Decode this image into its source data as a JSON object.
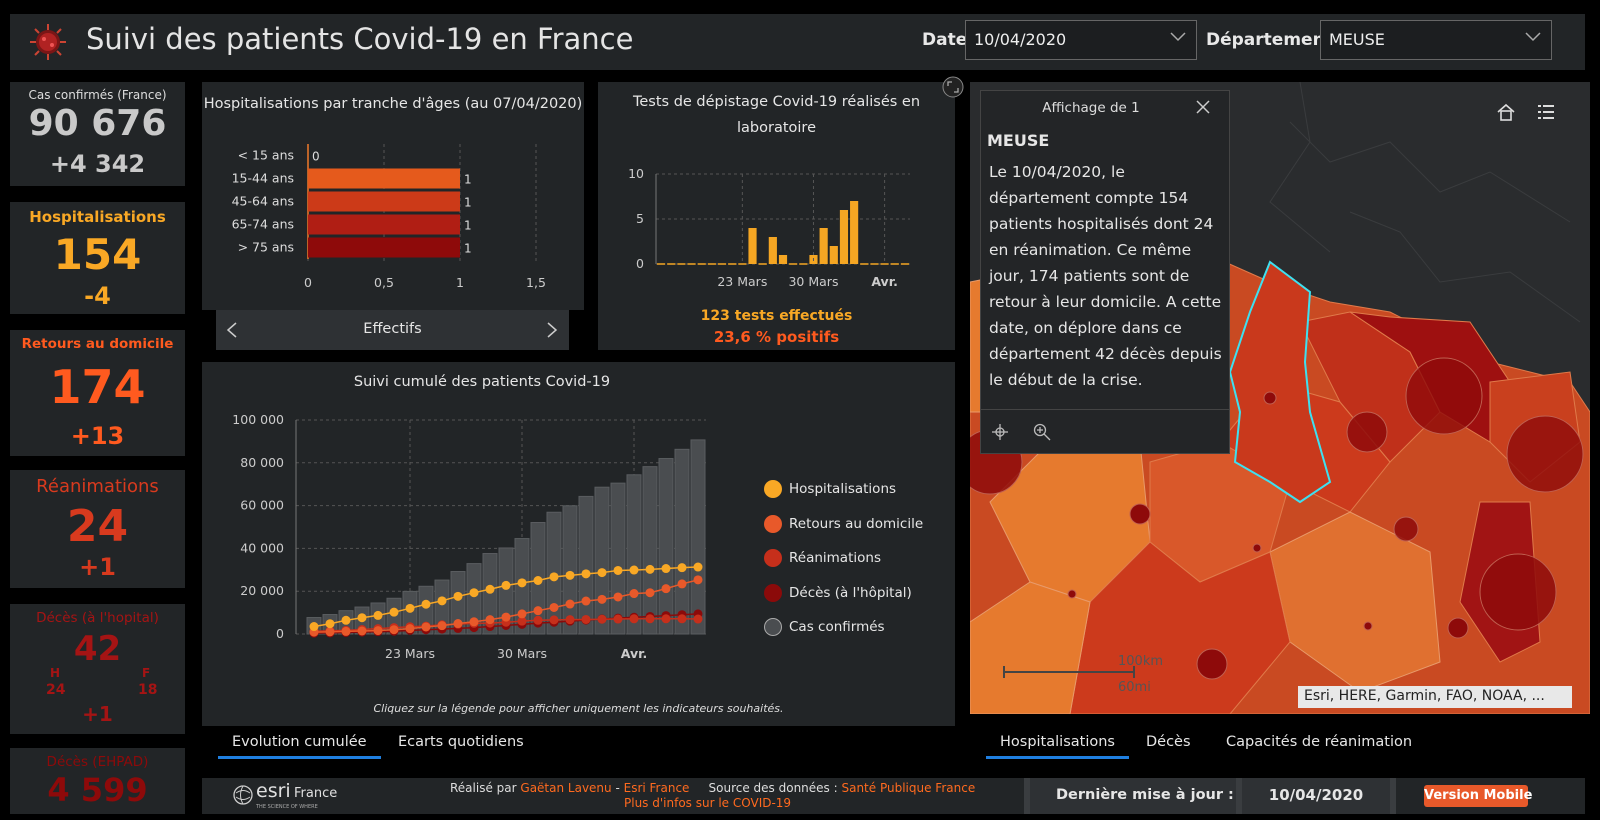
{
  "header": {
    "title": "Suivi des patients Covid-19 en France",
    "date_label": "Date:",
    "date_value": "10/04/2020",
    "dept_label": "Département:",
    "dept_value": "MEUSE"
  },
  "kpis": {
    "cas": {
      "label": "Cas confirmés (France)",
      "value": "90 676",
      "delta": "+4 342"
    },
    "hosp": {
      "label": "Hospitalisations",
      "value": "154",
      "delta": "-4"
    },
    "retours": {
      "label": "Retours au domicile",
      "value": "174",
      "delta": "+13"
    },
    "rea": {
      "label": "Réanimations",
      "value": "24",
      "delta": "+1"
    },
    "deces": {
      "label": "Décès (à l'hopital)",
      "value": "42",
      "h_label": "H",
      "f_label": "F",
      "h_value": "24",
      "f_value": "18",
      "delta": "+1"
    },
    "ehpad": {
      "label": "Décès (EHPAD)",
      "value": "4 599"
    }
  },
  "age_chart": {
    "title": "Hospitalisations par tranche d'âges (au 07/04/2020)",
    "nav_label": "Effectifs"
  },
  "tests_chart": {
    "title_line1": "Tests de dépistage Covid-19 réalisés en",
    "title_line2": "laboratoire",
    "summary_tests": "123 tests effectués",
    "summary_pos": "23,6 % positifs"
  },
  "cumul_chart": {
    "title": "Suivi cumulé des patients Covid-19",
    "legend": [
      "Hospitalisations",
      "Retours au domicile",
      "Réanimations",
      "Décès (à l'hôpital)",
      "Cas confirmés"
    ],
    "hint": "Cliquez sur la légende pour afficher uniquement les indicateurs souhaités."
  },
  "tabs_left": [
    "Evolution cumulée",
    "Ecarts quotidiens"
  ],
  "tabs_right": [
    "Hospitalisations",
    "Décès",
    "Capacités de réanimation"
  ],
  "popup": {
    "header": "Affichage de 1",
    "title": "MEUSE",
    "body": "Le 10/04/2020, le département compte 154 patients hospitalisés dont 24 en réanimation. Ce même jour, 174 patients sont de retour à leur domicile. A cette date, on déplore dans ce département 42 décès depuis le début de la crise."
  },
  "map": {
    "attribution": "Esri, HERE, Garmin, FAO, NOAA, ...",
    "scale_km": "100km",
    "scale_mi": "60mi"
  },
  "footer": {
    "brand": "esri",
    "brand_country": "France",
    "brand_tag": "THE SCIENCE OF WHERE",
    "made_by_label": "Réalisé par",
    "author": "Gaëtan Lavenu",
    "separator": " - ",
    "org": "Esri France",
    "source_label": "Source des données :",
    "source": "Santé Publique France",
    "more_info": "Plus d'infos sur le COVID-19",
    "update_label": "Dernière mise à jour :",
    "update_value": "10/04/2020",
    "mobile_button": "Version Mobile"
  },
  "chart_data": [
    {
      "type": "bar",
      "orientation": "horizontal",
      "title": "Hospitalisations par tranche d'âges (au 07/04/2020)",
      "categories": [
        "< 15 ans",
        "15-44 ans",
        "45-64 ans",
        "65-74 ans",
        "> 75 ans"
      ],
      "values": [
        0,
        1,
        1,
        1,
        1
      ],
      "colors": [
        "#f07a2a",
        "#e55a1c",
        "#cc3a18",
        "#b01e14",
        "#8e0a0a"
      ],
      "xlim": [
        0,
        1.5
      ],
      "xticks": [
        "0",
        "0,5",
        "1",
        "1,5"
      ],
      "xlabel": "Effectifs"
    },
    {
      "type": "bar",
      "title": "Tests de dépistage Covid-19 réalisés en laboratoire",
      "values": [
        0,
        0,
        0,
        0,
        0,
        0,
        0,
        0,
        0,
        4,
        0,
        3,
        1,
        0,
        0,
        1,
        4,
        2,
        6,
        7,
        0,
        0,
        0,
        0,
        0
      ],
      "ylim": [
        0,
        10
      ],
      "yticks": [
        "0",
        "5",
        "10"
      ],
      "xticks": [
        "23 Mars",
        "30 Mars",
        "Avr."
      ],
      "color": "#f5a623"
    },
    {
      "type": "line",
      "title": "Suivi cumulé des patients Covid-19",
      "x_ticks": [
        "23 Mars",
        "30 Mars",
        "Avr."
      ],
      "ylim": [
        0,
        100000
      ],
      "yticks": [
        "0",
        "20 000",
        "40 000",
        "60 000",
        "80 000",
        "100 000"
      ],
      "series": [
        {
          "name": "Cas confirmés",
          "kind": "bar",
          "color": "#555",
          "values": [
            7700,
            9100,
            10900,
            12600,
            14500,
            16700,
            19900,
            22300,
            25200,
            29200,
            32900,
            37600,
            40200,
            44600,
            52100,
            56900,
            59900,
            64300,
            68600,
            70500,
            74400,
            78200,
            82000,
            86300,
            90700
          ]
        },
        {
          "name": "Hospitalisations",
          "kind": "line",
          "color": "#f9a825",
          "values": [
            3500,
            4800,
            6400,
            7600,
            8700,
            10200,
            12000,
            13900,
            15500,
            17600,
            19300,
            20900,
            22700,
            23900,
            25000,
            26700,
            27400,
            28100,
            28700,
            29700,
            29900,
            30200,
            30600,
            31000,
            31300
          ]
        },
        {
          "name": "Retours au domicile",
          "kind": "line",
          "color": "#e8592a",
          "values": [
            900,
            1000,
            1200,
            1400,
            1600,
            2000,
            2500,
            3300,
            3900,
            4900,
            5700,
            6700,
            7900,
            9400,
            10900,
            12400,
            14000,
            15400,
            16200,
            17300,
            18900,
            19300,
            21200,
            23400,
            25300
          ]
        },
        {
          "name": "Réanimations",
          "kind": "line",
          "color": "#c62f1b",
          "values": [
            1300,
            1500,
            1700,
            2100,
            2500,
            3000,
            3400,
            3700,
            4300,
            4600,
            5000,
            5100,
            5500,
            6000,
            6400,
            6600,
            6700,
            6800,
            6900,
            7000,
            7100,
            7100,
            7100,
            7100,
            7000
          ]
        },
        {
          "name": "Décès (à l'hôpital)",
          "kind": "line",
          "color": "#8b0a0a",
          "values": [
            400,
            500,
            700,
            900,
            1100,
            1300,
            1700,
            2000,
            2300,
            2600,
            3000,
            3500,
            4000,
            4500,
            5100,
            5500,
            6000,
            6500,
            7000,
            7400,
            7800,
            8200,
            8600,
            9000,
            9400
          ]
        }
      ]
    }
  ]
}
